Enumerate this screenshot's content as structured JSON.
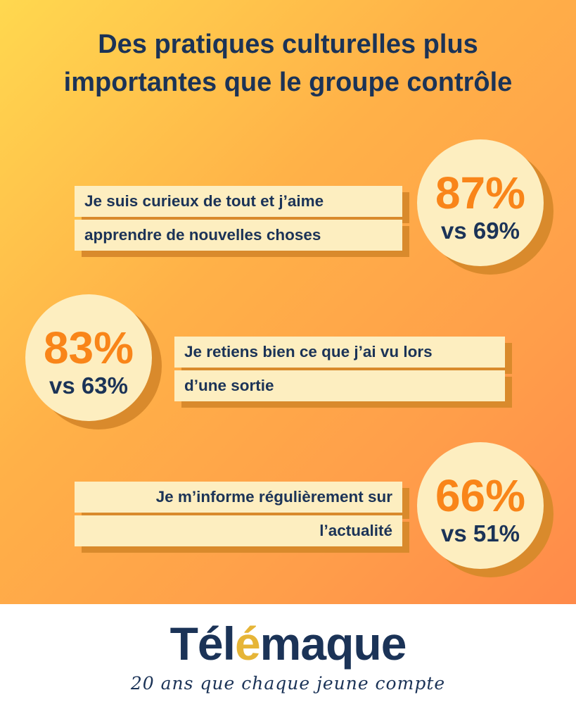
{
  "title": {
    "line1": "Des pratiques culturelles plus",
    "line2": "importantes que le groupe contrôle"
  },
  "stats": [
    {
      "statement_lines": [
        "Je suis curieux de tout et j’aime",
        "apprendre de nouvelles choses"
      ],
      "percent": "87%",
      "comparison": "vs 69%"
    },
    {
      "statement_lines": [
        "Je retiens bien ce que j’ai vu lors",
        "d’une sortie"
      ],
      "percent": "83%",
      "comparison": "vs 63%"
    },
    {
      "statement_lines": [
        "Je m’informe régulièrement sur",
        "l’actualité"
      ],
      "percent": "66%",
      "comparison": "vs 51%"
    }
  ],
  "brand": {
    "name": "Télémaque",
    "name_start": "Tél",
    "name_accent": "é",
    "name_end": "maque",
    "tagline": "20 ans que chaque jeune compte"
  },
  "colors": {
    "navy": "#1b3357",
    "orange": "#f98519",
    "cream": "#fdeec0",
    "gold": "#e6b537"
  }
}
